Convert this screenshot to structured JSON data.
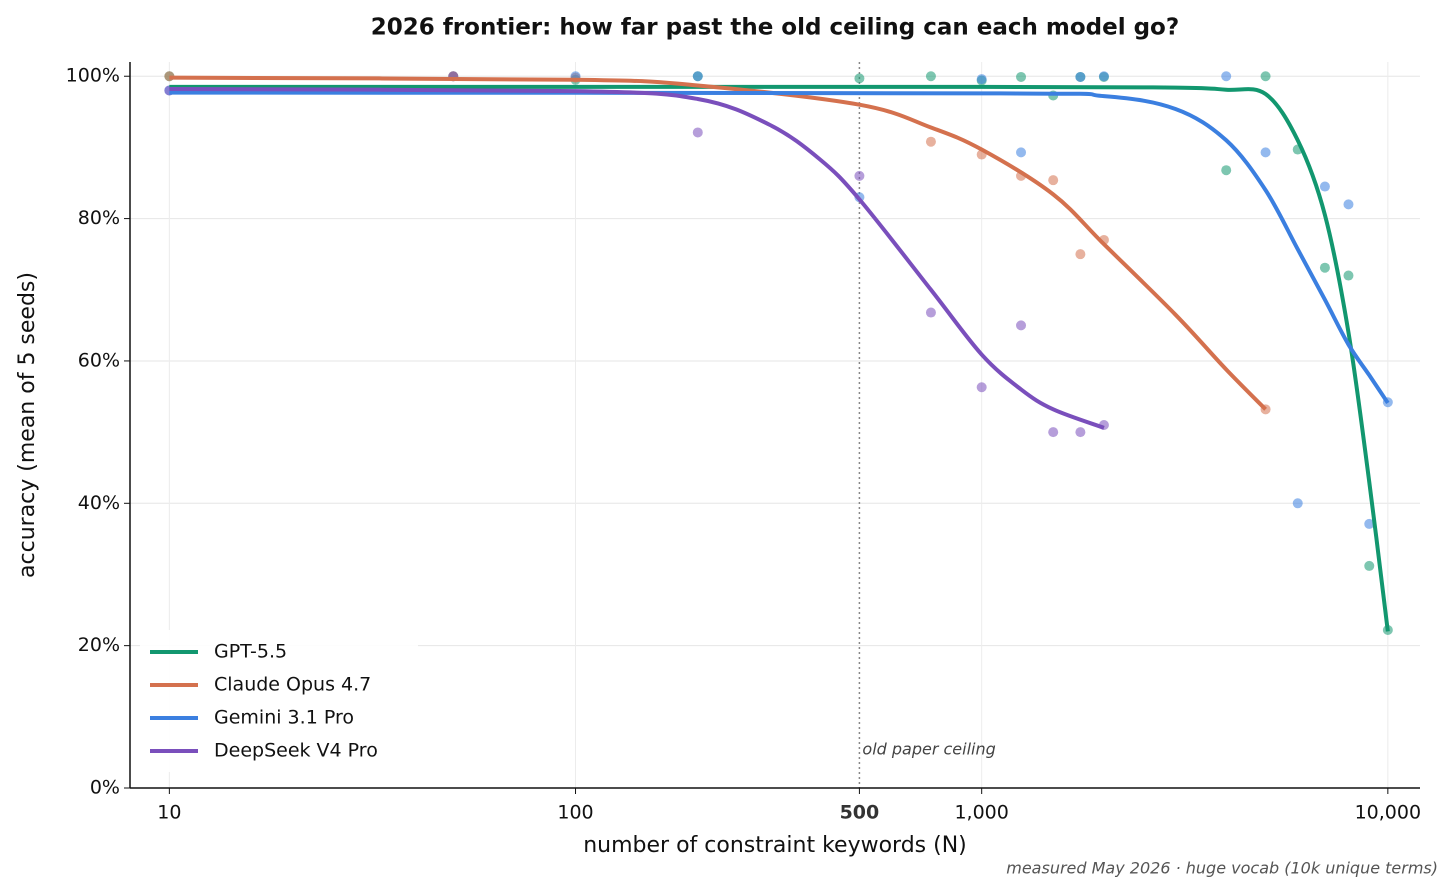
{
  "chart_data": {
    "type": "scatter",
    "title": "2026 frontier: how far past the old ceiling can each model go?",
    "x_label": "number of constraint keywords (N)",
    "y_label": "accuracy (mean of 5 seeds)",
    "footnote": "measured May 2026 · huge vocab (10k unique terms)",
    "x_scale": "log",
    "xlim": [
      8,
      12000
    ],
    "ylim": [
      0,
      102
    ],
    "xticks": [
      10,
      100,
      500,
      {
        "value": 1000,
        "label": "1,000"
      },
      {
        "value": 10000,
        "label": "10,000"
      }
    ],
    "yticks": [
      {
        "value": 0,
        "label": "0%"
      },
      {
        "value": 20,
        "label": "20%"
      },
      {
        "value": 40,
        "label": "40%"
      },
      {
        "value": 60,
        "label": "60%"
      },
      {
        "value": 80,
        "label": "80%"
      },
      {
        "value": 100,
        "label": "100%"
      }
    ],
    "grid": true,
    "legend": "lower left",
    "vline": {
      "x": 500,
      "label": "old paper ceiling"
    },
    "series": [
      {
        "name": "GPT-5.5",
        "color": "#12976f",
        "x": [
          10,
          50,
          100,
          200,
          500,
          750,
          1000,
          1250,
          1500,
          1750,
          2000,
          4000,
          5000,
          6000,
          7000,
          8000,
          9000,
          10000
        ],
        "values": [
          100,
          100,
          99.5,
          100,
          99.7,
          100,
          99.4,
          99.9,
          97.3,
          99.9,
          99.9,
          86.8,
          100,
          89.7,
          73.1,
          72,
          31.2,
          22.2
        ],
        "fit_x": [
          10,
          1000,
          3000,
          4000,
          5000,
          6000,
          7000,
          8000,
          9000,
          10000
        ],
        "fit_values": [
          98.5,
          98.5,
          98.4,
          98.1,
          97.5,
          91,
          80.5,
          64,
          43,
          22
        ]
      },
      {
        "name": "Claude Opus 4.7",
        "color": "#d4714e",
        "x": [
          10,
          50,
          100,
          750,
          1000,
          1250,
          1500,
          1750,
          2000,
          5000
        ],
        "values": [
          100,
          100,
          99.8,
          90.8,
          89,
          86,
          85.4,
          75,
          77,
          53.2
        ],
        "fit_x": [
          10,
          100,
          200,
          500,
          750,
          1000,
          1500,
          2000,
          3000,
          4000,
          5000
        ],
        "fit_values": [
          99.8,
          99.5,
          98.7,
          96,
          92.8,
          89.7,
          83.4,
          76.4,
          66.5,
          58.8,
          53.2
        ]
      },
      {
        "name": "Gemini 3.1 Pro",
        "color": "#3b7fe0",
        "x": [
          10,
          100,
          200,
          500,
          1000,
          1250,
          1750,
          2000,
          4000,
          5000,
          6000,
          7000,
          8000,
          9000,
          10000
        ],
        "values": [
          98,
          100,
          100,
          83,
          99.6,
          89.3,
          99.9,
          100,
          100,
          89.3,
          40,
          84.5,
          82,
          37.1,
          54.2
        ],
        "fit_x": [
          10,
          1000,
          2000,
          3000,
          4000,
          5000,
          6000,
          7000,
          8000,
          9000,
          10000
        ],
        "fit_values": [
          97.7,
          97.6,
          97.2,
          95.4,
          91,
          84,
          75.7,
          68.6,
          62.3,
          58,
          54.1
        ]
      },
      {
        "name": "DeepSeek V4 Pro",
        "color": "#7a4fbc",
        "x": [
          10,
          50,
          200,
          500,
          750,
          1000,
          1250,
          1500,
          1750,
          2000
        ],
        "values": [
          98,
          100,
          92.1,
          86,
          66.8,
          56.3,
          65,
          50,
          50,
          51
        ],
        "fit_x": [
          10,
          100,
          200,
          300,
          400,
          500,
          750,
          1000,
          1250,
          1500,
          2000
        ],
        "fit_values": [
          98.2,
          97.9,
          96.8,
          93.2,
          88.3,
          82.7,
          70,
          60.9,
          56,
          53.2,
          50.6
        ]
      }
    ]
  }
}
